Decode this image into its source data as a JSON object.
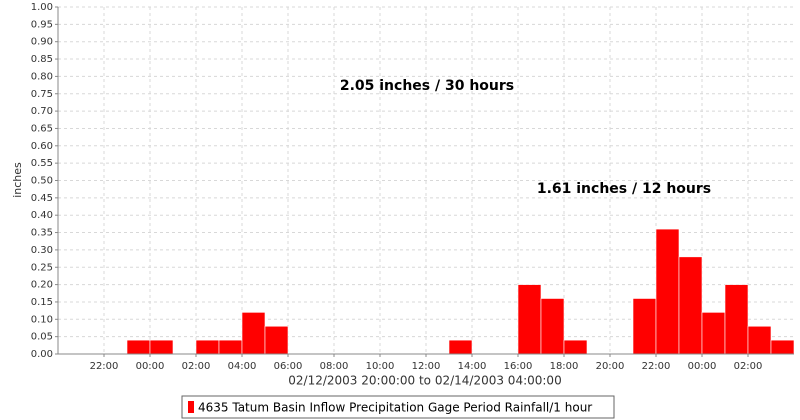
{
  "chart_data": {
    "type": "bar",
    "y_label": "inches",
    "x_label": "02/12/2003 20:00:00 to 02/14/2003 04:00:00",
    "annotations": [
      "2.05 inches / 30 hours",
      "1.61 inches / 12 hours"
    ],
    "x": [
      "02/12/2003 23:00",
      "02/13/2003 00:00",
      "02/13/2003 02:00",
      "02/13/2003 03:00",
      "02/13/2003 04:00",
      "02/13/2003 05:00",
      "02/13/2003 13:00",
      "02/13/2003 16:00",
      "02/13/2003 17:00",
      "02/13/2003 18:00",
      "02/13/2003 21:00",
      "02/13/2003 22:00",
      "02/13/2003 23:00",
      "02/14/2003 00:00",
      "02/14/2003 01:00",
      "02/14/2003 02:00",
      "02/14/2003 03:00"
    ],
    "series": [
      {
        "name": "4635 Tatum Basin Inflow Precipitation Gage Period Rainfall/1 hour",
        "color": "#ff0000",
        "values": [
          0.04,
          0.04,
          0.04,
          0.04,
          0.12,
          0.08,
          0.04,
          0.2,
          0.16,
          0.04,
          0.16,
          0.36,
          0.28,
          0.12,
          0.2,
          0.08,
          0.04
        ]
      }
    ],
    "xlim": [
      "02/12/2003 20:00",
      "02/14/2003 04:00"
    ],
    "xticks": [
      {
        "value": "02/12/2003 22:00",
        "label": "22:00"
      },
      {
        "value": "02/13/2003 00:00",
        "label": "00:00"
      },
      {
        "value": "02/13/2003 02:00",
        "label": "02:00"
      },
      {
        "value": "02/13/2003 04:00",
        "label": "04:00"
      },
      {
        "value": "02/13/2003 06:00",
        "label": "06:00"
      },
      {
        "value": "02/13/2003 08:00",
        "label": "08:00"
      },
      {
        "value": "02/13/2003 10:00",
        "label": "10:00"
      },
      {
        "value": "02/13/2003 12:00",
        "label": "12:00"
      },
      {
        "value": "02/13/2003 14:00",
        "label": "14:00"
      },
      {
        "value": "02/13/2003 16:00",
        "label": "16:00"
      },
      {
        "value": "02/13/2003 18:00",
        "label": "18:00"
      },
      {
        "value": "02/13/2003 20:00",
        "label": "20:00"
      },
      {
        "value": "02/13/2003 22:00",
        "label": "22:00"
      },
      {
        "value": "02/14/2003 00:00",
        "label": "00:00"
      },
      {
        "value": "02/14/2003 02:00",
        "label": "02:00"
      }
    ],
    "ylim": [
      0,
      1
    ],
    "yticks": [
      {
        "value": 0,
        "label": "0.00"
      },
      {
        "value": 0.05,
        "label": "0.05"
      },
      {
        "value": 0.1,
        "label": "0.10"
      },
      {
        "value": 0.15,
        "label": "0.15"
      },
      {
        "value": 0.2,
        "label": "0.20"
      },
      {
        "value": 0.25,
        "label": "0.25"
      },
      {
        "value": 0.3,
        "label": "0.30"
      },
      {
        "value": 0.35,
        "label": "0.35"
      },
      {
        "value": 0.4,
        "label": "0.40"
      },
      {
        "value": 0.45,
        "label": "0.45"
      },
      {
        "value": 0.5,
        "label": "0.50"
      },
      {
        "value": 0.55,
        "label": "0.55"
      },
      {
        "value": 0.6,
        "label": "0.60"
      },
      {
        "value": 0.65,
        "label": "0.65"
      },
      {
        "value": 0.7,
        "label": "0.70"
      },
      {
        "value": 0.75,
        "label": "0.75"
      },
      {
        "value": 0.8,
        "label": "0.80"
      },
      {
        "value": 0.85,
        "label": "0.85"
      },
      {
        "value": 0.9,
        "label": "0.90"
      },
      {
        "value": 0.95,
        "label": "0.95"
      },
      {
        "value": 1,
        "label": "1.00"
      }
    ],
    "grid": true
  }
}
